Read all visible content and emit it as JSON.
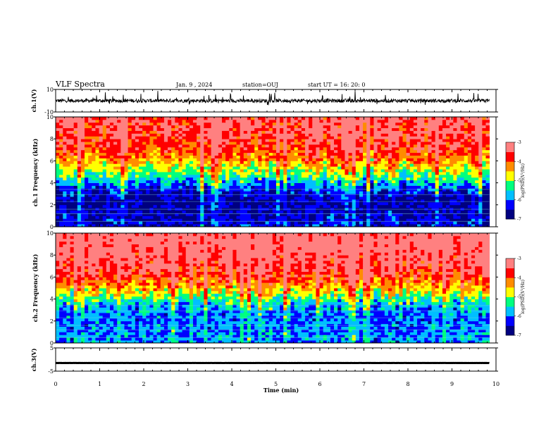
{
  "header": {
    "title": "VLF Spectra",
    "date": "Jan. 9 , 2024",
    "station": "station=OUJ",
    "start_ut": "start UT =  16: 20: 0"
  },
  "chart_data": [
    {
      "type": "line",
      "name": "ch1-waveform",
      "ylabel": "ch.1(V)",
      "xlim": [
        0,
        10
      ],
      "ylim": [
        -10,
        10
      ],
      "yticks": [
        "10",
        "-10"
      ],
      "baseline": 0
    },
    {
      "type": "heatmap",
      "name": "ch1-spectrogram",
      "ylabel": "ch.1 Frequency (kHz)",
      "xlim": [
        0,
        10
      ],
      "ylim": [
        0,
        10
      ],
      "yticks": [
        "0",
        "2",
        "4",
        "6",
        "8",
        "10"
      ],
      "colorbar": {
        "label": "log(PSD)(V²/Hz)",
        "range": [
          -7,
          -3
        ],
        "ticks": [
          "-3",
          "-4",
          "-5",
          "-6",
          "-7"
        ]
      },
      "band_profile": [
        {
          "f": 0.5,
          "level": -6.4
        },
        {
          "f": 1.5,
          "level": -6.6
        },
        {
          "f": 2.5,
          "level": -6.6
        },
        {
          "f": 3.5,
          "level": -6.2
        },
        {
          "f": 4.5,
          "level": -5.3
        },
        {
          "f": 5.5,
          "level": -4.6
        },
        {
          "f": 6.5,
          "level": -4.0
        },
        {
          "f": 7.5,
          "level": -3.7
        },
        {
          "f": 8.5,
          "level": -3.5
        },
        {
          "f": 9.5,
          "level": -3.4
        }
      ]
    },
    {
      "type": "heatmap",
      "name": "ch2-spectrogram",
      "ylabel": "ch.2 Frequency (kHz)",
      "xlim": [
        0,
        10
      ],
      "ylim": [
        0,
        10
      ],
      "yticks": [
        "0",
        "2",
        "4",
        "6",
        "8",
        "10"
      ],
      "colorbar": {
        "label": "log(PSD)(V²/Hz)",
        "range": [
          -7,
          -3
        ],
        "ticks": [
          "-3",
          "-4",
          "-5",
          "-6",
          "-7"
        ]
      },
      "band_profile": [
        {
          "f": 0.5,
          "level": -5.9
        },
        {
          "f": 1.5,
          "level": -6.0
        },
        {
          "f": 2.5,
          "level": -6.0
        },
        {
          "f": 3.5,
          "level": -5.7
        },
        {
          "f": 4.5,
          "level": -4.8
        },
        {
          "f": 5.5,
          "level": -4.1
        },
        {
          "f": 6.5,
          "level": -3.6
        },
        {
          "f": 7.5,
          "level": -3.4
        },
        {
          "f": 8.5,
          "level": -3.2
        },
        {
          "f": 9.5,
          "level": -3.1
        }
      ]
    },
    {
      "type": "line",
      "name": "ch3-waveform",
      "ylabel": "ch.3(V)",
      "xlim": [
        0,
        10
      ],
      "ylim": [
        -5,
        5
      ],
      "yticks": [
        "5",
        "-5"
      ],
      "baseline": -1.5
    }
  ],
  "xaxis": {
    "label": "Time (min)",
    "ticks": [
      "0",
      "1",
      "2",
      "3",
      "4",
      "5",
      "6",
      "7",
      "8",
      "9",
      "10"
    ]
  },
  "colors": {
    "colormap": [
      "#000080",
      "#0000ff",
      "#00bfff",
      "#00ff7f",
      "#ffff00",
      "#ff8c00",
      "#ff0000",
      "#ff8080"
    ]
  }
}
